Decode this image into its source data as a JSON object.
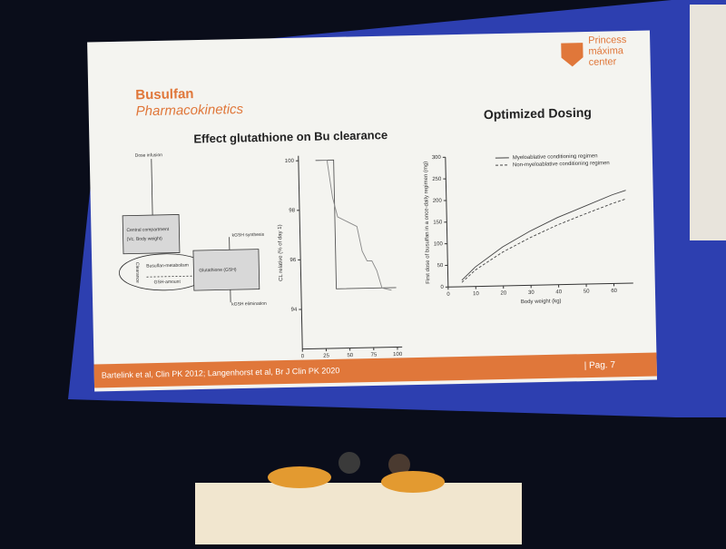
{
  "slide": {
    "title": "Busulfan",
    "subtitle": "Pharmacokinetics",
    "logo": [
      "Princess",
      "máxima",
      "center"
    ],
    "left_heading": "Effect glutathione on Bu clearance",
    "right_heading": "Optimized Dosing",
    "footer": "Bartelink et al, Clin PK 2012; Langenhorst et al, Br J Clin PK 2020",
    "page": "| Pag. 7",
    "diagram": {
      "dose": "Dose infusion",
      "central": [
        "Central compartment",
        "(Vc, Body weight)"
      ],
      "clearance": "Clearance",
      "metabolism": "Busulfan-metabolism",
      "gsh_amount": "GSH-amount",
      "glutathione": "Glutathione (GSH)",
      "synthesis": "kGSH synthesis",
      "elimination": "kGSH elimination"
    }
  },
  "chart_data": [
    {
      "type": "line",
      "ylabel": "CL relative (% of day 1)",
      "xlim": [
        0,
        105
      ],
      "ylim": [
        92.4,
        100.2
      ],
      "xticks": [
        0,
        25,
        50,
        75,
        100
      ],
      "yticks": [
        94,
        96,
        98,
        100
      ],
      "series": [
        {
          "color": "#555555",
          "x": [
            18,
            37,
            37,
            100
          ],
          "values": [
            100,
            100,
            94.8,
            94.8
          ]
        },
        {
          "color": "#888888",
          "x": [
            18,
            30,
            35,
            40,
            50,
            60,
            65,
            70,
            75,
            80,
            85,
            95
          ],
          "values": [
            100,
            100,
            98.5,
            97.7,
            97.5,
            97.3,
            96.3,
            95.9,
            95.9,
            95.5,
            94.8,
            94.7
          ]
        }
      ]
    },
    {
      "type": "line",
      "xlabel": "Body weight (kg)",
      "ylabel": "First dose of busulfan in a once-daily regimen (mg)",
      "xlim": [
        0,
        67
      ],
      "ylim": [
        0,
        300
      ],
      "xticks": [
        0,
        10,
        20,
        30,
        40,
        50,
        60
      ],
      "yticks": [
        0,
        50,
        100,
        150,
        200,
        250,
        300
      ],
      "series": [
        {
          "name": "Myeloablative conditioning regimen",
          "color": "#444444",
          "dash": false,
          "x": [
            5,
            10,
            20,
            30,
            40,
            50,
            60,
            65
          ],
          "values": [
            15,
            45,
            90,
            125,
            155,
            180,
            205,
            215
          ]
        },
        {
          "name": "Non-myeloablative conditioning regimen",
          "color": "#444444",
          "dash": true,
          "x": [
            5,
            10,
            20,
            30,
            40,
            50,
            60,
            65
          ],
          "values": [
            10,
            38,
            78,
            110,
            138,
            162,
            185,
            195
          ]
        }
      ]
    }
  ]
}
